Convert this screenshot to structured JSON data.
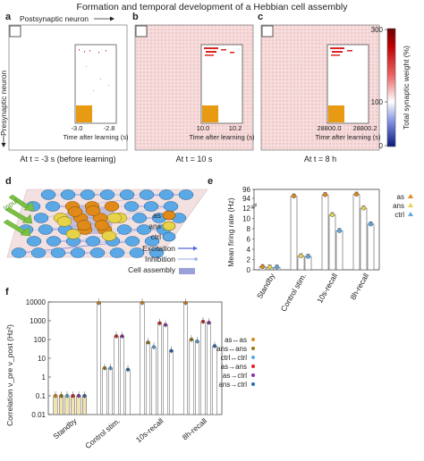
{
  "figure": {
    "title": "Formation and temporal development of a Hebbian cell assembly",
    "panel_letters": [
      "a",
      "b",
      "c",
      "d",
      "e",
      "f"
    ],
    "labels": {
      "postsynaptic": "Postsynaptic neuron",
      "presynaptic": "Presynaptic neuron",
      "inset_xlabel": "Time after learning (s)"
    },
    "colors": {
      "as": "#e08a1a",
      "ans": "#e6d34a",
      "ctrl": "#5aa9e6",
      "background_pink": "#f5d4d4",
      "excitation": "#5566dd",
      "inhibition": "#99aaee",
      "assembly": "#9aa0d8"
    }
  },
  "panels": {
    "a": {
      "caption": "At t = -3 s (before learning)",
      "inset_ticks": [
        "-3.0",
        "-2.8"
      ]
    },
    "b": {
      "caption": "At t = 10 s",
      "inset_ticks": [
        "10.0",
        "10.2"
      ]
    },
    "c": {
      "caption": "At t = 8 h",
      "inset_ticks": [
        "28800.0",
        "28800.2"
      ]
    }
  },
  "colorbar": {
    "label": "Total synaptic weight (%)",
    "ticks": [
      "300",
      "100",
      "0"
    ],
    "colors": [
      "#8b0000",
      "#ffffff",
      "#1a2a8a"
    ]
  },
  "network_legend": {
    "items": [
      "as",
      "ans",
      "ctrl"
    ],
    "lines": [
      "Excitation",
      "Inhibition",
      "Cell assembly"
    ],
    "input_label": "Input"
  },
  "chart_data": [
    {
      "type": "bar",
      "panel": "e",
      "ylabel": "Mean firing rate (Hz)",
      "categories": [
        "Standby",
        "Control stim.",
        "10s-recall",
        "8h-recall"
      ],
      "y_ticks_lower": [
        "0",
        "2",
        "4",
        "6",
        "8",
        "10",
        "12"
      ],
      "y_ticks_upper": [
        "94",
        "96"
      ],
      "legend": [
        "as",
        "ans",
        "ctrl"
      ],
      "series": [
        {
          "name": "as",
          "values": [
            0.6,
            94.5,
            94.8,
            94.9
          ]
        },
        {
          "name": "ans",
          "values": [
            0.5,
            2.7,
            10.7,
            12.0
          ]
        },
        {
          "name": "ctrl",
          "values": [
            0.5,
            2.6,
            7.6,
            8.9
          ]
        }
      ]
    },
    {
      "type": "bar",
      "panel": "f",
      "ylabel": "Correlation ν_pre ν_post (Hz²)",
      "log_scale": true,
      "ylim": [
        0.01,
        10000
      ],
      "y_ticks": [
        "10000",
        "1000",
        "100",
        "10",
        "1",
        "0.1",
        "0.01"
      ],
      "categories": [
        "Standby",
        "Control stim.",
        "10s-recall",
        "8h-recall"
      ],
      "legend": [
        "as↔as",
        "ans↔ans",
        "ctrl↔ctrl",
        "as→ans",
        "as→ctrl",
        "ans→ctrl"
      ],
      "series": [
        {
          "name": "as↔as",
          "values": [
            0.1,
            9000,
            9000,
            9000
          ]
        },
        {
          "name": "ans↔ans",
          "values": [
            0.1,
            3,
            70,
            100
          ]
        },
        {
          "name": "ctrl↔ctrl",
          "values": [
            0.1,
            3,
            40,
            80
          ]
        },
        {
          "name": "as→ans",
          "values": [
            0.1,
            150,
            750,
            900
          ]
        },
        {
          "name": "as→ctrl",
          "values": [
            0.1,
            150,
            600,
            800
          ]
        },
        {
          "name": "ans→ctrl",
          "values": [
            0.1,
            2.5,
            25,
            45
          ]
        }
      ]
    }
  ]
}
